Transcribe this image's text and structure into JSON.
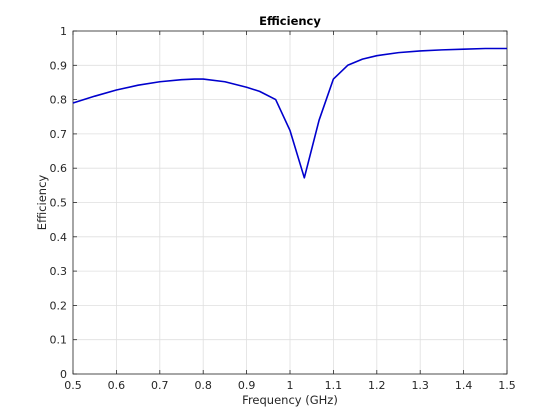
{
  "chart_data": {
    "type": "line",
    "title": "Efficiency",
    "xlabel": "Frequency (GHz)",
    "ylabel": "Efficiency",
    "xlim": [
      0.5,
      1.5
    ],
    "ylim": [
      0,
      1
    ],
    "grid": true,
    "xticks": [
      0.5,
      0.6,
      0.7,
      0.8,
      0.9,
      1,
      1.1,
      1.2,
      1.3,
      1.4,
      1.5
    ],
    "xtick_labels": [
      "0.5",
      "0.6",
      "0.7",
      "0.8",
      "0.9",
      "1",
      "1.1",
      "1.2",
      "1.3",
      "1.4",
      "1.5"
    ],
    "yticks": [
      0,
      0.1,
      0.2,
      0.3,
      0.4,
      0.5,
      0.6,
      0.7,
      0.8,
      0.9,
      1
    ],
    "ytick_labels": [
      "0",
      "0.1",
      "0.2",
      "0.3",
      "0.4",
      "0.5",
      "0.6",
      "0.7",
      "0.8",
      "0.9",
      "1"
    ],
    "line_color": "#0000cd",
    "series": [
      {
        "x": [
          0.5,
          0.55,
          0.6,
          0.65,
          0.7,
          0.75,
          0.78,
          0.8,
          0.85,
          0.9,
          0.93,
          0.967,
          1.0,
          1.033,
          1.067,
          1.1,
          1.133,
          1.167,
          1.2,
          1.25,
          1.3,
          1.35,
          1.4,
          1.45,
          1.5
        ],
        "y": [
          0.79,
          0.81,
          0.828,
          0.842,
          0.852,
          0.858,
          0.86,
          0.86,
          0.852,
          0.836,
          0.824,
          0.8,
          0.71,
          0.572,
          0.74,
          0.86,
          0.9,
          0.918,
          0.928,
          0.937,
          0.942,
          0.945,
          0.947,
          0.949,
          0.949
        ]
      }
    ]
  }
}
